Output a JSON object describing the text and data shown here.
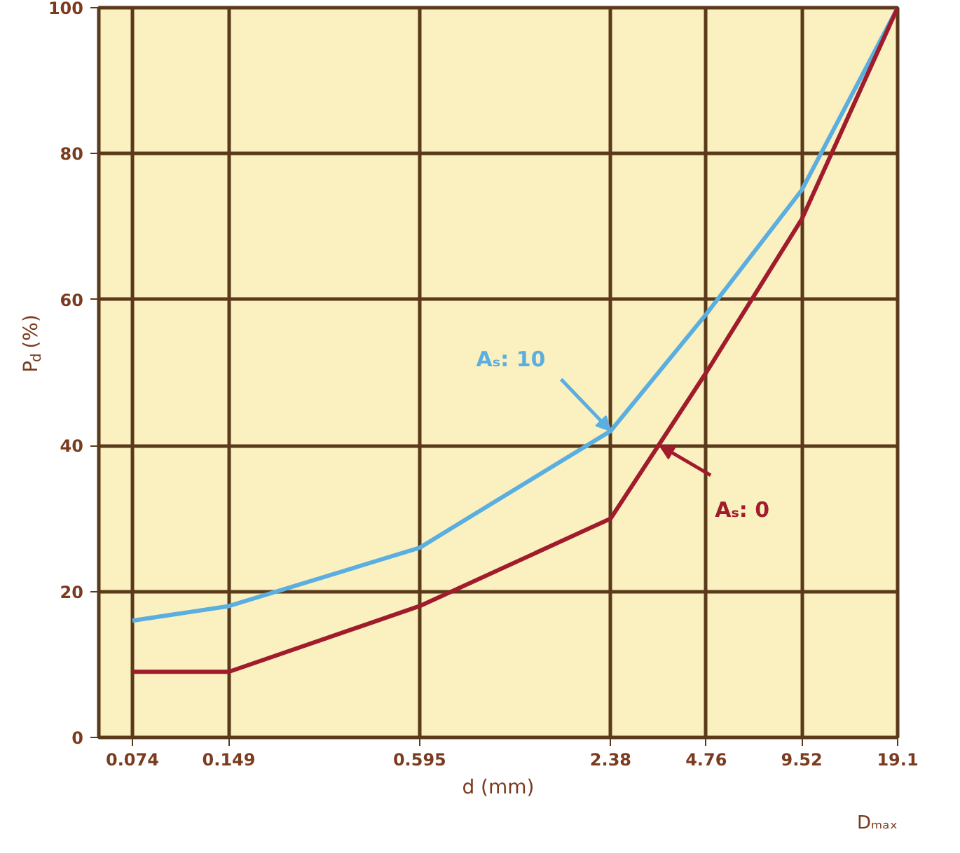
{
  "chart_data": {
    "type": "line",
    "xlabel": "d (mm)",
    "ylabel": "P$_{d}$ (%)",
    "log": "x",
    "x": [
      0.074,
      0.149,
      0.595,
      2.38,
      4.76,
      9.52,
      19.1
    ],
    "series": [
      {
        "color": "#5aaee0",
        "values": [
          16,
          18,
          26,
          42,
          58,
          75,
          100
        ]
      },
      {
        "color": "#a01c2c",
        "values": [
          9,
          9,
          18,
          30,
          50,
          71,
          100
        ]
      }
    ],
    "xlim": [
      0.058,
      19.1
    ],
    "ylim": [
      0,
      100
    ],
    "xticks": [
      0.074,
      0.149,
      0.595,
      2.38,
      4.76,
      9.52,
      19.1
    ],
    "yticks": [
      0,
      20,
      40,
      60,
      80,
      100
    ],
    "grid": true,
    "marker": "none",
    "line_style": "solid",
    "annotations": [
      {
        "text": "Aₛ: 10",
        "x": 2.38,
        "y": 42
      },
      {
        "text": "Aₛ: 0",
        "x": 3.4,
        "y": 40
      },
      "Dₘₐₓ"
    ]
  }
}
